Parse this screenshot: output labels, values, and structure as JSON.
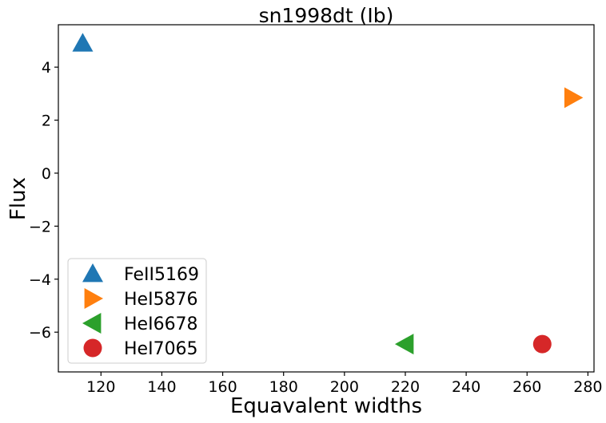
{
  "chart_data": {
    "type": "scatter",
    "title": "sn1998dt (Ib)",
    "xlabel": "Equavalent widths",
    "ylabel": "Flux",
    "xlim": [
      106,
      282
    ],
    "ylim": [
      -7.5,
      5.6
    ],
    "xticks": [
      120,
      140,
      160,
      180,
      200,
      220,
      240,
      260,
      280
    ],
    "yticks": [
      4,
      2,
      0,
      -2,
      -4,
      -6
    ],
    "ytick_labels": [
      "4",
      "2",
      "0",
      "−2",
      "−4",
      "−6"
    ],
    "grid": false,
    "legend_placement": "lower-left",
    "series": [
      {
        "name": "FeII5169",
        "marker": "triangle-up",
        "color": "#1f77b4",
        "x": [
          114
        ],
        "y": [
          4.9
        ]
      },
      {
        "name": "HeI5876",
        "marker": "triangle-right",
        "color": "#ff7f0e",
        "x": [
          275
        ],
        "y": [
          2.85
        ]
      },
      {
        "name": "HeI6678",
        "marker": "triangle-left",
        "color": "#2ca02c",
        "x": [
          220
        ],
        "y": [
          -6.45
        ]
      },
      {
        "name": "HeI7065",
        "marker": "circle",
        "color": "#d62728",
        "x": [
          265
        ],
        "y": [
          -6.45
        ]
      }
    ]
  }
}
